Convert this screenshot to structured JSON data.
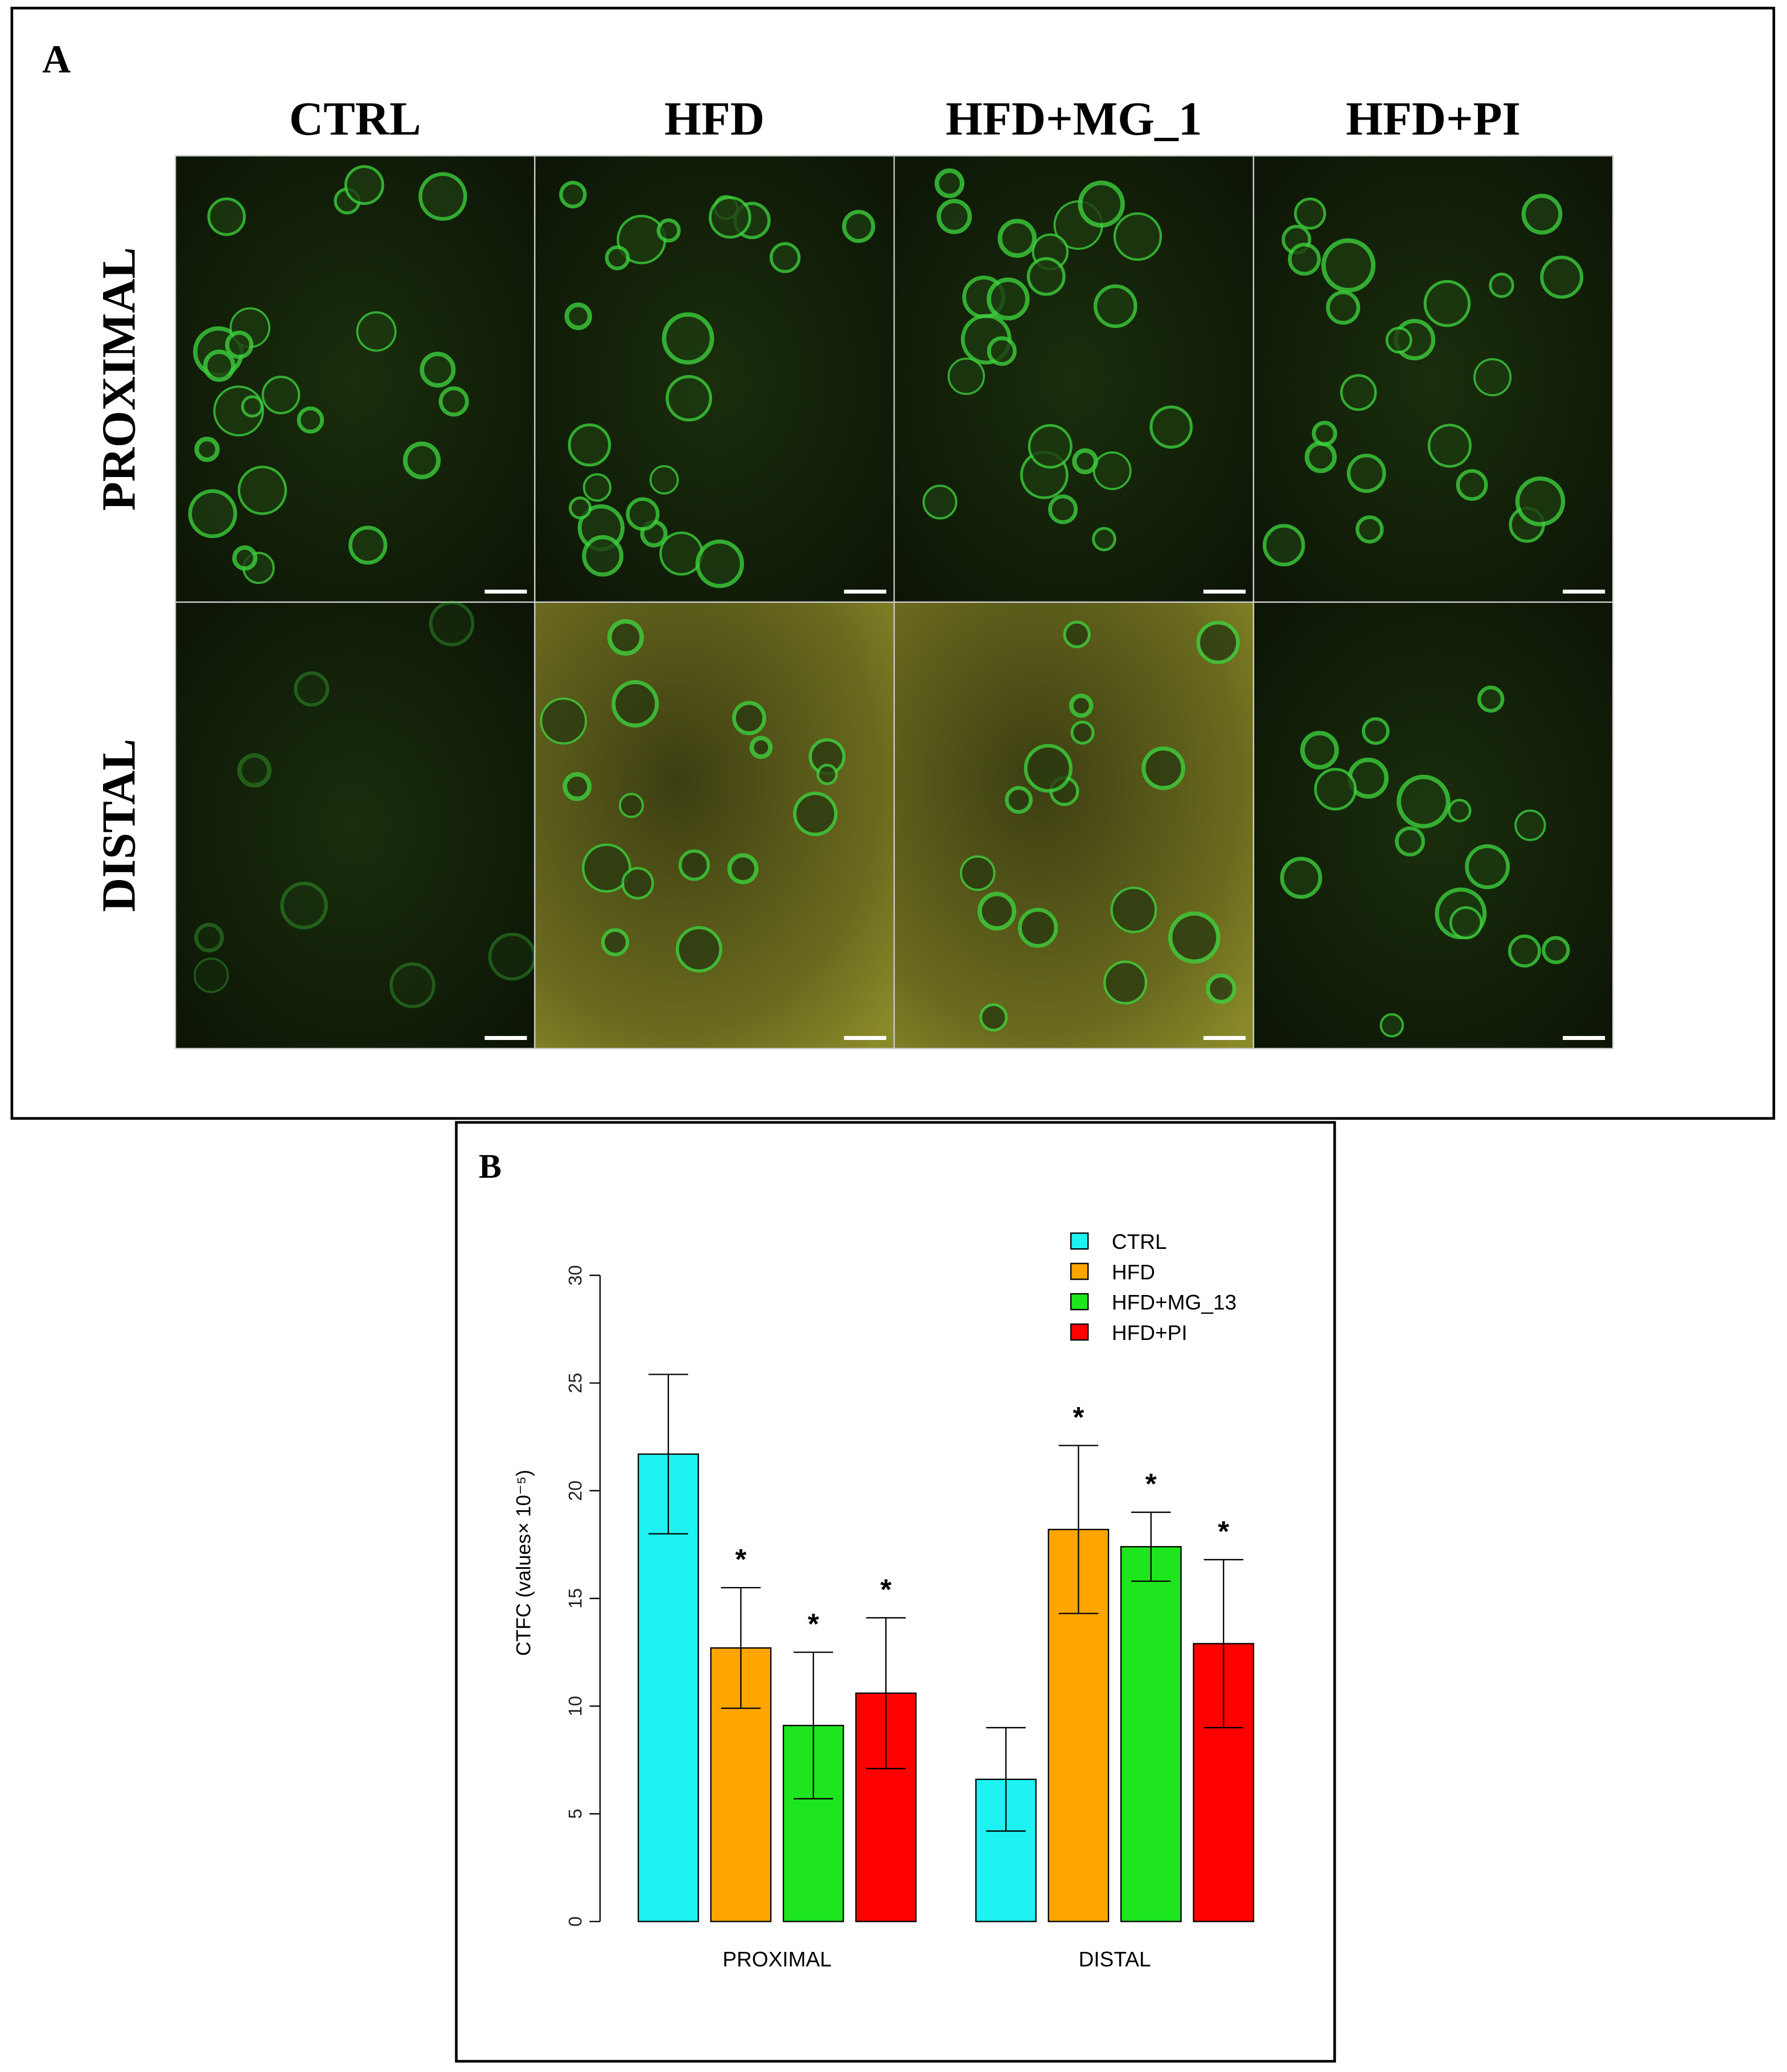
{
  "panel_a": {
    "label": "A",
    "columns": [
      "CTRL",
      "HFD",
      "HFD+MG_1",
      "HFD+PI"
    ],
    "rows": [
      "PROXIMAL",
      "DISTAL"
    ]
  },
  "chart_data": {
    "type": "bar",
    "label": "B",
    "y_label": "CTFC (values× 10⁻⁵)",
    "categories": [
      "PROXIMAL",
      "DISTAL"
    ],
    "series": [
      {
        "name": "CTRL",
        "color": "#1ef2f2",
        "values": [
          21.7,
          6.6
        ],
        "errors": [
          3.7,
          2.4
        ],
        "annotations": [
          null,
          null
        ]
      },
      {
        "name": "HFD",
        "color": "#ffa500",
        "values": [
          12.7,
          18.2
        ],
        "errors": [
          2.8,
          3.9
        ],
        "annotations": [
          "*",
          "*"
        ]
      },
      {
        "name": "HFD+MG_13",
        "color": "#1ee61e",
        "values": [
          9.1,
          17.4
        ],
        "errors": [
          3.4,
          1.6
        ],
        "annotations": [
          "*",
          "*"
        ]
      },
      {
        "name": "HFD+PI",
        "color": "#ff0000",
        "values": [
          10.6,
          12.9
        ],
        "errors": [
          3.5,
          3.9
        ],
        "annotations": [
          "*",
          "*"
        ]
      }
    ],
    "ylim": [
      0,
      30
    ],
    "yticks": [
      0,
      5,
      10,
      15,
      20,
      25,
      30
    ],
    "legend": "top-right"
  }
}
